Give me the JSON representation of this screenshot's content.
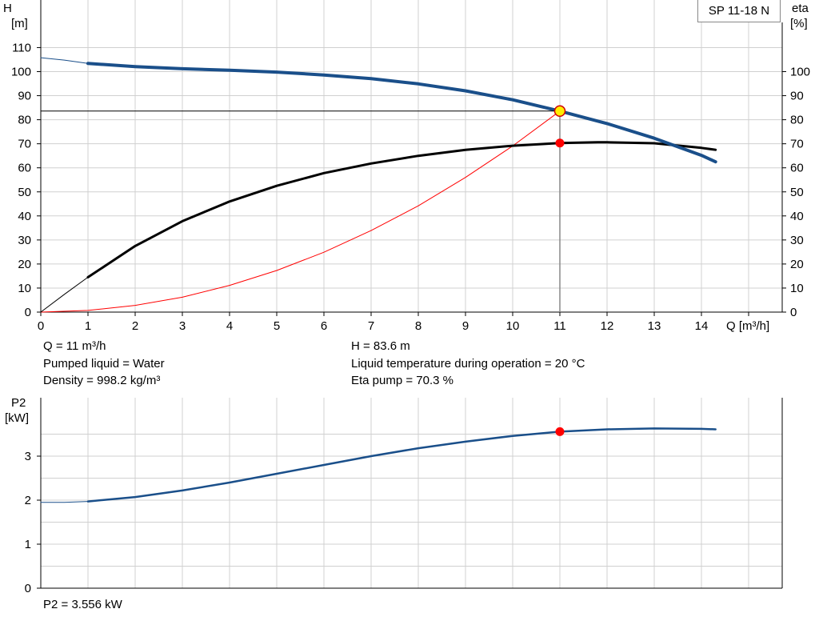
{
  "pump_label": "SP 11-18 N",
  "info": {
    "q": "Q = 11 m³/h",
    "liquid": "Pumped liquid = Water",
    "density": "Density = 998.2 kg/m³",
    "h": "H = 83.6 m",
    "temperature": "Liquid temperature during operation = 20 °C",
    "eta": "Eta pump = 70.3 %",
    "p2": "P2 = 3.556 kW"
  },
  "chart_data": [
    {
      "type": "line",
      "title": "",
      "xlabel": "Q [m³/h]",
      "ylabel": "H\n[m]",
      "ylabel_lines": [
        "H",
        "[m]"
      ],
      "y2label_lines": [
        "eta",
        "[%]"
      ],
      "xlim": [
        0,
        15.7
      ],
      "ylim": [
        0,
        110
      ],
      "y2lim": [
        0,
        110
      ],
      "x_ticks": [
        0,
        1,
        2,
        3,
        4,
        5,
        6,
        7,
        8,
        9,
        10,
        11,
        12,
        13,
        14
      ],
      "y_ticks": [
        0,
        10,
        20,
        30,
        40,
        50,
        60,
        70,
        80,
        90,
        100,
        110
      ],
      "y2_ticks": [
        0,
        10,
        20,
        30,
        40,
        50,
        60,
        70,
        80,
        90,
        100
      ],
      "grid": true,
      "series": [
        {
          "id": "head",
          "color": "#1a4f8a",
          "values_x": [
            1,
            2,
            3,
            4,
            5,
            6,
            7,
            8,
            9,
            10,
            11,
            12,
            13,
            14,
            14.3
          ],
          "values_y": [
            103.4,
            102.1,
            101.2,
            100.6,
            99.8,
            98.6,
            97.1,
            94.9,
            92.0,
            88.3,
            83.6,
            78.4,
            72.3,
            65.2,
            62.5
          ]
        },
        {
          "id": "head_extension",
          "color": "#1a4f8a",
          "values_x": [
            0,
            0.5,
            1
          ],
          "values_y": [
            105.8,
            104.8,
            103.4
          ]
        },
        {
          "id": "efficiency",
          "color": "#000000",
          "values_x": [
            1,
            2,
            3,
            4,
            5,
            6,
            7,
            8,
            9,
            10,
            11,
            11.8,
            12,
            13,
            14,
            14.3
          ],
          "values_y": [
            14.5,
            27.5,
            37.8,
            46.0,
            52.5,
            57.8,
            61.8,
            65.0,
            67.5,
            69.2,
            70.3,
            70.6,
            70.6,
            70.2,
            68.3,
            67.5
          ]
        },
        {
          "id": "efficiency_extension",
          "color": "#000000",
          "values_x": [
            0,
            0.5,
            1
          ],
          "values_y": [
            0,
            7.4,
            14.5
          ]
        },
        {
          "id": "system_curve",
          "color": "#ff0000",
          "values_x": [
            0,
            1,
            2,
            3,
            4,
            5,
            6,
            7,
            8,
            9,
            10,
            11
          ],
          "values_y": [
            0,
            0.7,
            2.8,
            6.2,
            11.1,
            17.3,
            24.9,
            33.9,
            44.2,
            56.0,
            69.1,
            83.6
          ]
        }
      ],
      "operating_point": {
        "x": 11,
        "h": 83.6,
        "eta": 70.3
      }
    },
    {
      "type": "line",
      "title": "",
      "xlabel": "",
      "ylabel_lines": [
        "P2",
        "[kW]"
      ],
      "xlim": [
        0,
        15.7
      ],
      "ylim": [
        0,
        3.8
      ],
      "y_ticks": [
        0,
        1,
        2,
        3
      ],
      "grid": true,
      "series": [
        {
          "id": "power",
          "color": "#1a4f8a",
          "values_x": [
            1,
            2,
            3,
            4,
            5,
            6,
            7,
            8,
            9,
            10,
            11,
            12,
            13,
            14,
            14.3
          ],
          "values_y": [
            1.97,
            2.07,
            2.22,
            2.4,
            2.6,
            2.8,
            3.0,
            3.18,
            3.33,
            3.46,
            3.556,
            3.61,
            3.63,
            3.62,
            3.61
          ]
        },
        {
          "id": "power_extension",
          "color": "#1a4f8a",
          "values_x": [
            0,
            0.5,
            1
          ],
          "values_y": [
            1.95,
            1.95,
            1.97
          ]
        }
      ],
      "operating_point": {
        "x": 11,
        "p2": 3.556
      }
    }
  ]
}
